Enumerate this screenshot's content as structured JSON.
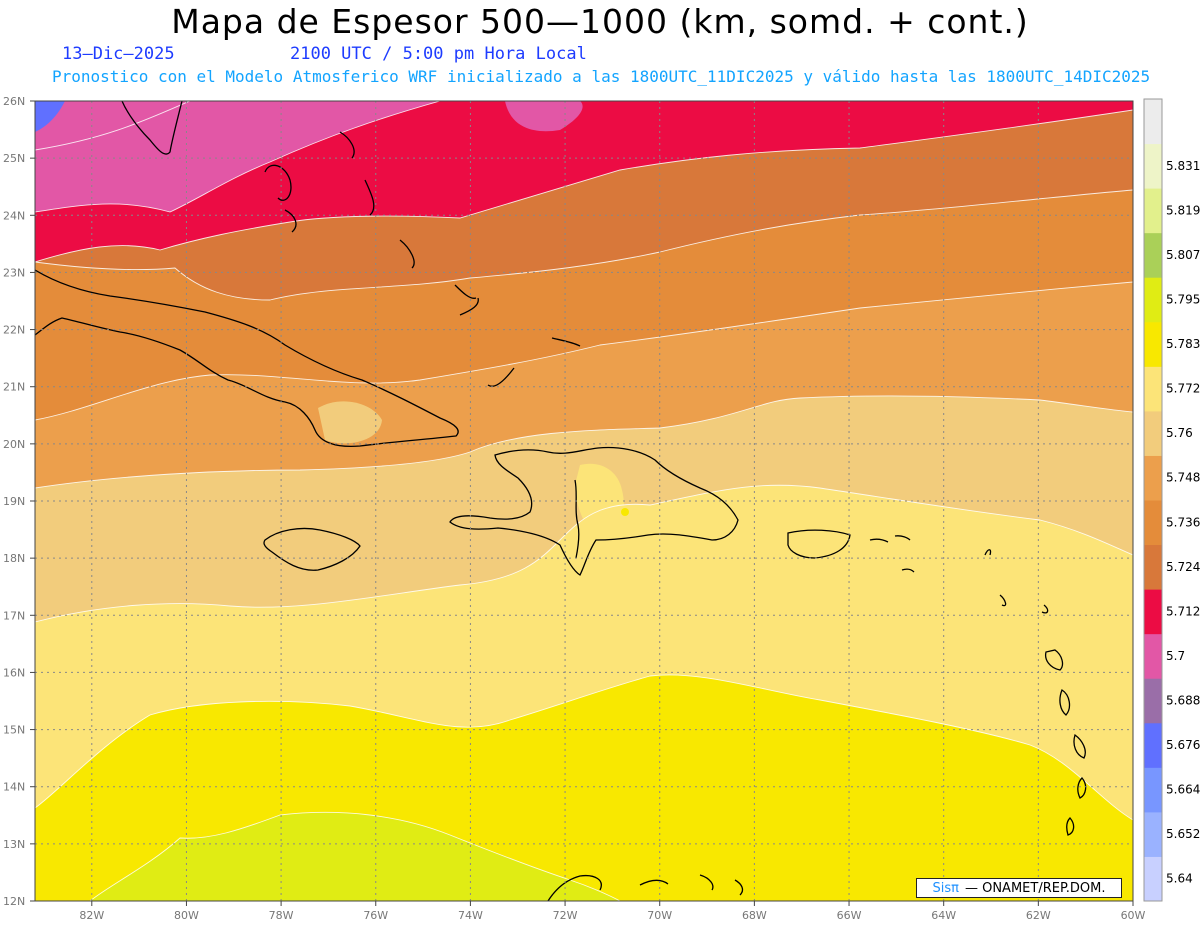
{
  "header": {
    "title": "Mapa de Espesor 500—1000 (km, somd. + cont.)",
    "date": "13—Dic—2025",
    "time": "2100 UTC / 5:00 pm Hora Local",
    "forecast_note": "Pronostico con el Modelo Atmosferico WRF inicializado a las 1800UTC_11DIC2025 y válido hasta las  1800UTC_14DIC2025"
  },
  "map": {
    "lat_labels": [
      "26N",
      "25N",
      "24N",
      "23N",
      "22N",
      "21N",
      "20N",
      "19N",
      "18N",
      "17N",
      "16N",
      "15N",
      "14N",
      "13N",
      "12N"
    ],
    "lon_labels": [
      "82W",
      "80W",
      "78W",
      "76W",
      "74W",
      "72W",
      "70W",
      "68W",
      "66W",
      "64W",
      "62W",
      "60W"
    ],
    "lat_range": [
      12,
      26
    ],
    "lon_range": [
      -83.2,
      -60
    ],
    "gridlines": "dotted",
    "colors": {
      "c1": "#c8d0ff",
      "c2": "#9ab2ff",
      "c3": "#7896ff",
      "c4": "#6070ff",
      "c5": "#9a6ea8",
      "c6": "#e257a6",
      "c7": "#ec0c44",
      "c8": "#d8783a",
      "c9": "#e48c3a",
      "c10": "#ec9f4c",
      "c11": "#f2cc7c",
      "c12": "#fce478",
      "c13": "#f8e800",
      "c14": "#e0ec14",
      "c15": "#aad058",
      "c16": "#e2f08c",
      "c17": "#eef4c8",
      "c18": "#ececec"
    }
  },
  "colorbar": {
    "labels": [
      "5.64",
      "5.652",
      "5.664",
      "5.676",
      "5.688",
      "5.7",
      "5.712",
      "5.724",
      "5.736",
      "5.748",
      "5.76",
      "5.772",
      "5.783",
      "5.795",
      "5.807",
      "5.819",
      "5.831"
    ],
    "colors": [
      "#c8d0ff",
      "#9ab2ff",
      "#7896ff",
      "#6070ff",
      "#9a6ea8",
      "#e257a6",
      "#ec0c44",
      "#d8783a",
      "#e48c3a",
      "#ec9f4c",
      "#f2cc7c",
      "#fce478",
      "#f8e800",
      "#e0ec14",
      "#aad058",
      "#e2f08c",
      "#eef4c8",
      "#ececec"
    ]
  },
  "credit": {
    "brand": "Sisπ",
    "text": "— ONAMET/REP.DOM."
  }
}
